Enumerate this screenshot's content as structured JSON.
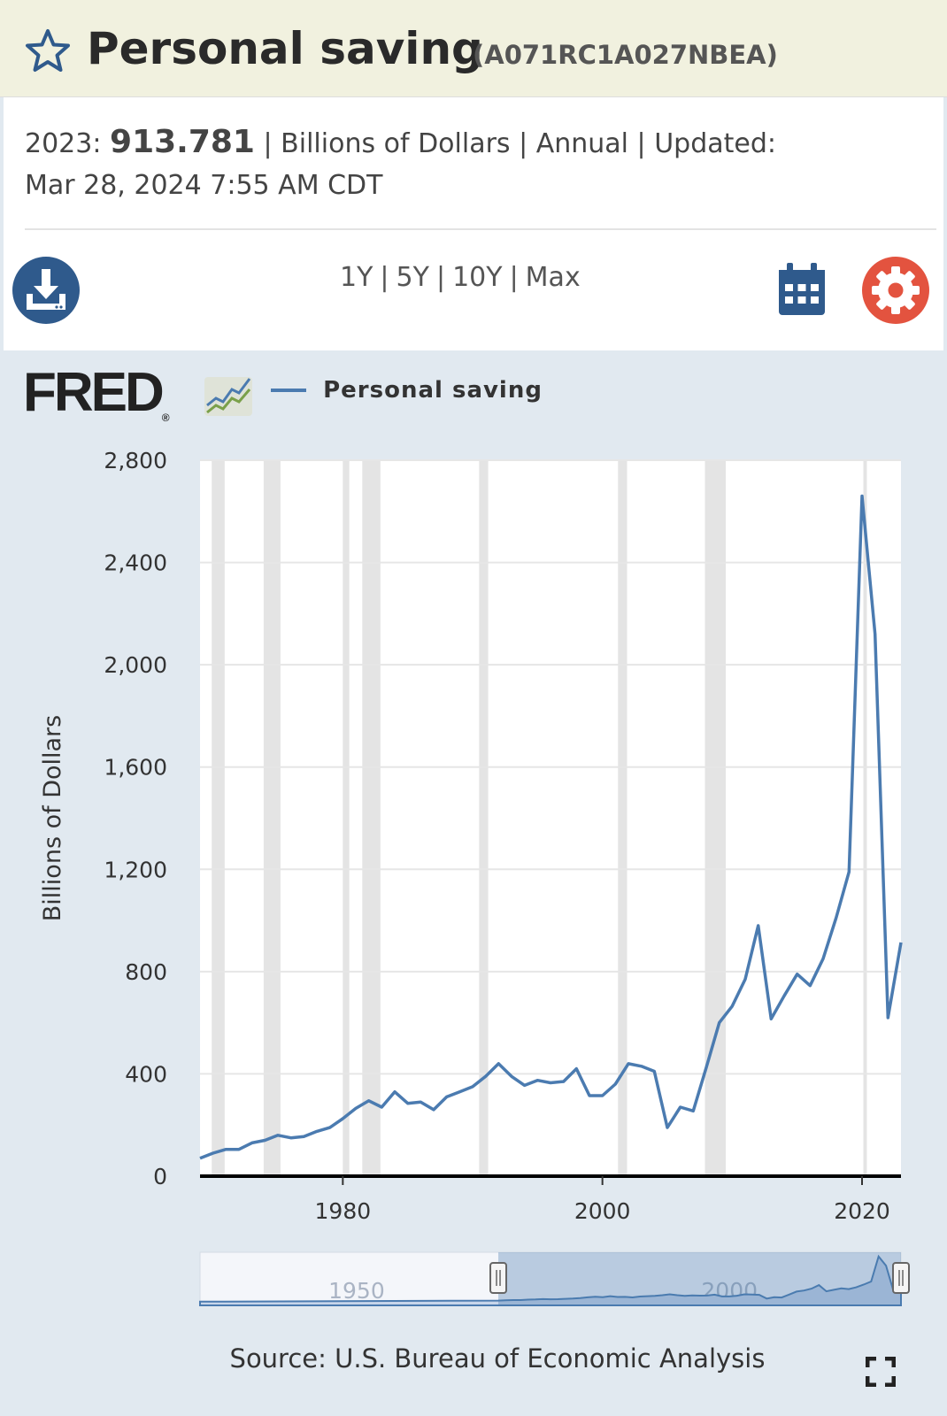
{
  "header": {
    "title": "Personal saving",
    "series_id": "(A071RC1A027NBEA)"
  },
  "info": {
    "year_label": "2023:",
    "value": "913.781",
    "rest_line1": "| Billions of Dollars | Annual | Updated:",
    "updated": "Mar 28, 2024 7:55 AM CDT"
  },
  "toolbar": {
    "ranges": [
      "1Y",
      "5Y",
      "10Y",
      "Max"
    ]
  },
  "logo": {
    "text": "FRED",
    "registered": "®"
  },
  "legend": {
    "label": "Personal saving",
    "color": "#4b7bb0"
  },
  "source": "Source: U.S. Bureau of Economic Analysis",
  "colors": {
    "title_bar": "#f1f1df",
    "chart_bg": "#e1e9f0",
    "download": "#2f5a8c",
    "settings": "#e3533f",
    "recession": "#e4e4e4"
  },
  "chart_data": {
    "type": "line",
    "title": "Personal saving",
    "xlabel": "",
    "ylabel": "Billions of Dollars",
    "ylim": [
      0,
      2800
    ],
    "xlim": [
      1969,
      2023
    ],
    "y_ticks": [
      0,
      400,
      800,
      1200,
      1600,
      2000,
      2400,
      2800
    ],
    "y_tick_labels": [
      "0",
      "400",
      "800",
      "1,200",
      "1,600",
      "2,000",
      "2,400",
      "2,800"
    ],
    "x_ticks": [
      1980,
      2000,
      2020
    ],
    "x_tick_labels": [
      "1980",
      "2000",
      "2020"
    ],
    "recessions": [
      [
        1969.9,
        1970.9
      ],
      [
        1973.9,
        1975.2
      ],
      [
        1980.0,
        1980.5
      ],
      [
        1981.5,
        1982.9
      ],
      [
        1990.5,
        1991.2
      ],
      [
        2001.2,
        2001.9
      ],
      [
        2007.9,
        2009.5
      ],
      [
        2020.1,
        2020.3
      ]
    ],
    "series": [
      {
        "name": "Personal saving",
        "x": [
          1969,
          1970,
          1971,
          1972,
          1973,
          1974,
          1975,
          1976,
          1977,
          1978,
          1979,
          1980,
          1981,
          1982,
          1983,
          1984,
          1985,
          1986,
          1987,
          1988,
          1989,
          1990,
          1991,
          1992,
          1993,
          1994,
          1995,
          1996,
          1997,
          1998,
          1999,
          2000,
          2001,
          2002,
          2003,
          2004,
          2005,
          2006,
          2007,
          2008,
          2009,
          2010,
          2011,
          2012,
          2013,
          2014,
          2015,
          2016,
          2017,
          2018,
          2019,
          2020,
          2021,
          2022,
          2023
        ],
        "values": [
          70,
          90,
          105,
          105,
          130,
          140,
          160,
          150,
          155,
          175,
          190,
          225,
          265,
          295,
          270,
          330,
          285,
          290,
          260,
          310,
          330,
          350,
          390,
          440,
          390,
          355,
          375,
          365,
          370,
          420,
          315,
          315,
          360,
          440,
          430,
          410,
          190,
          270,
          255,
          425,
          600,
          665,
          770,
          980,
          615,
          705,
          790,
          745,
          850,
          1010,
          1190,
          2660,
          2120,
          620,
          914
        ]
      }
    ],
    "navigator": {
      "x_tick_labels": [
        "1950",
        "2000"
      ],
      "x_ticks": [
        1950,
        2000
      ],
      "range": [
        1929,
        2023
      ],
      "selected": [
        1969,
        2023
      ]
    }
  }
}
